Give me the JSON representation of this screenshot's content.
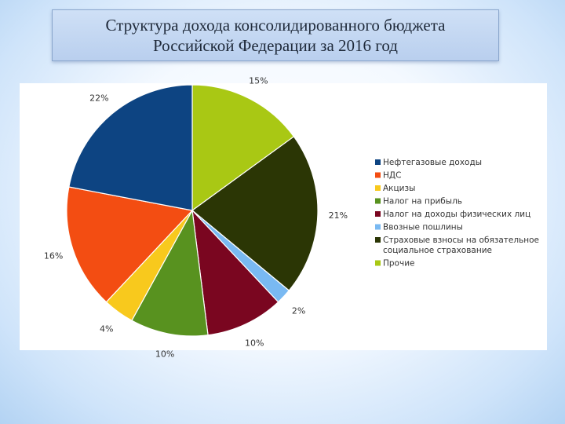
{
  "title": {
    "line1": "Структура дохода консолидированного бюджета",
    "line2": "Российской Федерации за 2016 год"
  },
  "chart_data": {
    "type": "pie",
    "title": "Структура дохода консолидированного бюджета Российской Федерации за 2016 год",
    "start": "12 o'clock, clockwise",
    "legend_position": "right",
    "slices": [
      {
        "name": "Прочие",
        "value": 15,
        "label": "15%",
        "color": "#a9c814"
      },
      {
        "name": "Страховые взносы на обязательное социальное страхование",
        "value": 21,
        "label": "21%",
        "color": "#2b3605"
      },
      {
        "name": "Ввозные пошлины",
        "value": 2,
        "label": "2%",
        "color": "#79b9f2"
      },
      {
        "name": "Налог на доходы физических лиц",
        "value": 10,
        "label": "10%",
        "color": "#7a0620"
      },
      {
        "name": "Налог на прибыль",
        "value": 10,
        "label": "10%",
        "color": "#58921f"
      },
      {
        "name": "Акцизы",
        "value": 4,
        "label": "4%",
        "color": "#f8c91d"
      },
      {
        "name": "НДС",
        "value": 16,
        "label": "16%",
        "color": "#f34d12"
      },
      {
        "name": "Нефтегазовые доходы",
        "value": 22,
        "label": "22%",
        "color": "#0d4482"
      }
    ],
    "legend": [
      {
        "lines": [
          "Нефтегазовые доходы"
        ],
        "color": "#0d4482"
      },
      {
        "lines": [
          "НДС"
        ],
        "color": "#f34d12"
      },
      {
        "lines": [
          "Акцизы"
        ],
        "color": "#f8c91d"
      },
      {
        "lines": [
          "Налог на прибыль"
        ],
        "color": "#58921f"
      },
      {
        "lines": [
          "Налог на доходы физических лиц"
        ],
        "color": "#7a0620"
      },
      {
        "lines": [
          "Ввозные пошлины"
        ],
        "color": "#79b9f2"
      },
      {
        "lines": [
          "Страховые взносы на обязательное",
          "социальное страхование"
        ],
        "color": "#2b3605"
      },
      {
        "lines": [
          "Прочие"
        ],
        "color": "#a9c814"
      }
    ]
  }
}
